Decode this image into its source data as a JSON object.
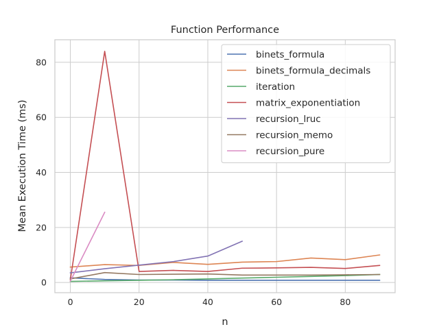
{
  "chart_data": {
    "type": "line",
    "title": "Function Performance",
    "xlabel": "n",
    "ylabel": "Mean Execution Time (ms)",
    "xlim": [
      -4.5,
      94.5
    ],
    "ylim": [
      -3.7,
      88.2
    ],
    "xticks": [
      0,
      20,
      40,
      60,
      80
    ],
    "yticks": [
      0,
      20,
      40,
      60,
      80
    ],
    "grid": true,
    "legend_position": "top-right",
    "x": [
      0,
      10,
      20,
      30,
      40,
      50,
      60,
      70,
      80,
      90
    ],
    "series": [
      {
        "name": "binets_formula",
        "color": "#4c72b0",
        "values": [
          1.7,
          1.1,
          0.9,
          0.9,
          0.8,
          0.8,
          0.8,
          0.8,
          0.8,
          0.8
        ]
      },
      {
        "name": "binets_formula_decimals",
        "color": "#dd8452",
        "values": [
          5.6,
          6.5,
          6.2,
          7.3,
          6.6,
          7.4,
          7.6,
          8.9,
          8.3,
          10.0
        ]
      },
      {
        "name": "iteration",
        "color": "#55a868",
        "values": [
          0.4,
          0.6,
          0.8,
          1.0,
          1.3,
          1.6,
          1.9,
          2.2,
          2.5,
          2.9
        ]
      },
      {
        "name": "matrix_exponentiation",
        "color": "#c44e52",
        "values": [
          1.0,
          84.0,
          4.0,
          4.4,
          4.0,
          5.2,
          5.3,
          5.5,
          5.1,
          6.2
        ]
      },
      {
        "name": "recursion_lruc",
        "color": "#8172b3",
        "values": [
          3.5,
          5.0,
          6.3,
          7.6,
          9.6,
          15.0,
          null,
          null,
          null,
          null
        ]
      },
      {
        "name": "recursion_memo",
        "color": "#937860",
        "values": [
          1.3,
          3.6,
          2.9,
          3.0,
          3.1,
          2.7,
          2.7,
          2.7,
          2.8,
          2.9
        ]
      },
      {
        "name": "recursion_pure",
        "color": "#da8bc3",
        "values": [
          0.5,
          25.5,
          null,
          null,
          null,
          null,
          null,
          null,
          null,
          null
        ]
      }
    ]
  }
}
